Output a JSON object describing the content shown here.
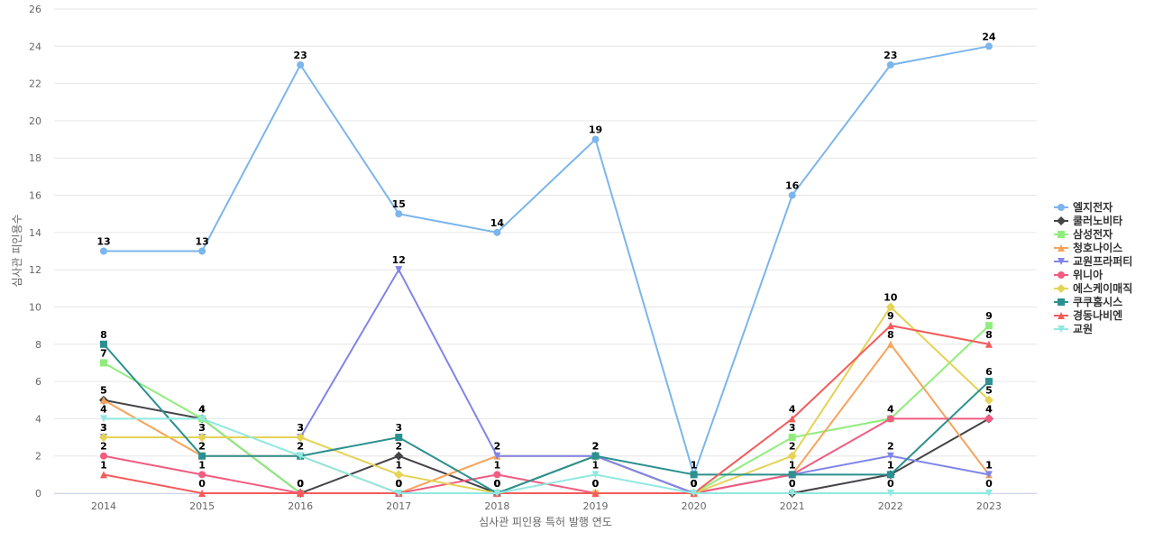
{
  "chart_data": {
    "type": "line",
    "xlabel": "심사관 피인용 특허 발행 연도",
    "ylabel": "심사관 피인용수",
    "categories": [
      "2014",
      "2015",
      "2016",
      "2017",
      "2018",
      "2019",
      "2020",
      "2021",
      "2022",
      "2023"
    ],
    "ylim": [
      0,
      26
    ],
    "yticks": [
      0,
      2,
      4,
      6,
      8,
      10,
      12,
      14,
      16,
      18,
      20,
      22,
      24,
      26
    ],
    "grid": true,
    "legend_position": "right",
    "series": [
      {
        "name": "엘지전자",
        "color": "#7cb5ec",
        "marker": "circle",
        "values": [
          13,
          13,
          23,
          15,
          14,
          19,
          1,
          16,
          23,
          24
        ]
      },
      {
        "name": "쿨러노비타",
        "color": "#434348",
        "marker": "diamond",
        "values": [
          5,
          4,
          0,
          2,
          0,
          2,
          0,
          0,
          1,
          4
        ]
      },
      {
        "name": "삼성전자",
        "color": "#90ed7d",
        "marker": "square",
        "values": [
          7,
          4,
          0,
          0,
          0,
          2,
          0,
          3,
          4,
          9
        ]
      },
      {
        "name": "청호나이스",
        "color": "#f7a35c",
        "marker": "triangle",
        "values": [
          5,
          2,
          2,
          0,
          2,
          2,
          0,
          1,
          8,
          1
        ]
      },
      {
        "name": "교원프라퍼티",
        "color": "#8085e9",
        "marker": "triangle-down",
        "values": [
          3,
          3,
          3,
          12,
          2,
          2,
          0,
          1,
          2,
          1
        ]
      },
      {
        "name": "위니아",
        "color": "#f15c80",
        "marker": "circle",
        "values": [
          2,
          1,
          0,
          0,
          1,
          0,
          0,
          1,
          4,
          4
        ]
      },
      {
        "name": "에스케이매직",
        "color": "#e4d354",
        "marker": "diamond",
        "values": [
          3,
          3,
          3,
          1,
          0,
          0,
          0,
          2,
          10,
          5
        ]
      },
      {
        "name": "쿠쿠홈시스",
        "color": "#2b908f",
        "marker": "square",
        "values": [
          8,
          2,
          2,
          3,
          0,
          2,
          1,
          1,
          1,
          6
        ]
      },
      {
        "name": "경동나비엔",
        "color": "#f45b5b",
        "marker": "triangle",
        "values": [
          1,
          0,
          0,
          0,
          0,
          0,
          0,
          4,
          9,
          8
        ]
      },
      {
        "name": "교원",
        "color": "#91e8e1",
        "marker": "triangle-down",
        "values": [
          4,
          4,
          2,
          0,
          0,
          1,
          0,
          0,
          0,
          0
        ]
      }
    ]
  }
}
